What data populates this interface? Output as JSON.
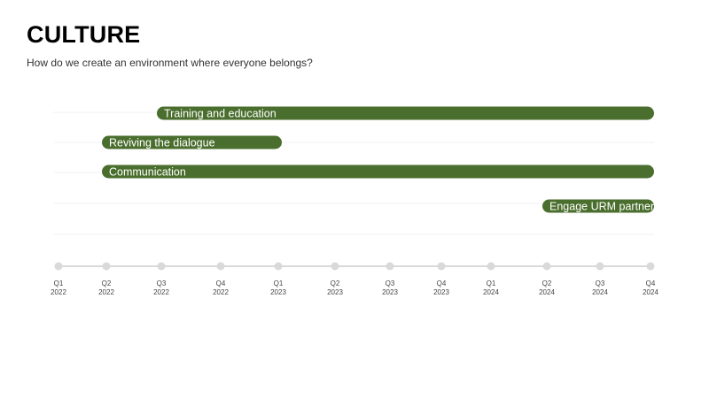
{
  "header": {
    "title": "CULTURE",
    "subtitle": "How do we create an environment where everyone belongs?"
  },
  "colors": {
    "bar": "#4a6e2d",
    "axis": "#d9d9d9",
    "grid": "#f0f0f0"
  },
  "chart_data": {
    "type": "bar",
    "orientation": "horizontal-timeline",
    "title": "",
    "xlabel": "",
    "ylabel": "",
    "grid": true,
    "legend": "none",
    "ticks": [
      {
        "q": "Q1",
        "y": "2022"
      },
      {
        "q": "Q2",
        "y": "2022"
      },
      {
        "q": "Q3",
        "y": "2022"
      },
      {
        "q": "Q4",
        "y": "2022"
      },
      {
        "q": "Q1",
        "y": "2023"
      },
      {
        "q": "Q2",
        "y": "2023"
      },
      {
        "q": "Q3",
        "y": "2023"
      },
      {
        "q": "Q4",
        "y": "2023"
      },
      {
        "q": "Q1",
        "y": "2024"
      },
      {
        "q": "Q2",
        "y": "2024"
      },
      {
        "q": "Q3",
        "y": "2024"
      },
      {
        "q": "Q4",
        "y": "2024"
      }
    ],
    "bars": [
      {
        "label": "Training and education",
        "start": "Q3 2022",
        "end": "Q4 2024"
      },
      {
        "label": "Reviving the dialogue",
        "start": "Q2 2022",
        "end": "Q1 2023"
      },
      {
        "label": "Communication",
        "start": "Q2 2022",
        "end": "Q4 2024"
      },
      {
        "label": "Engage URM partners",
        "start": "Q2 2024",
        "end": "Q4 2024"
      }
    ]
  }
}
